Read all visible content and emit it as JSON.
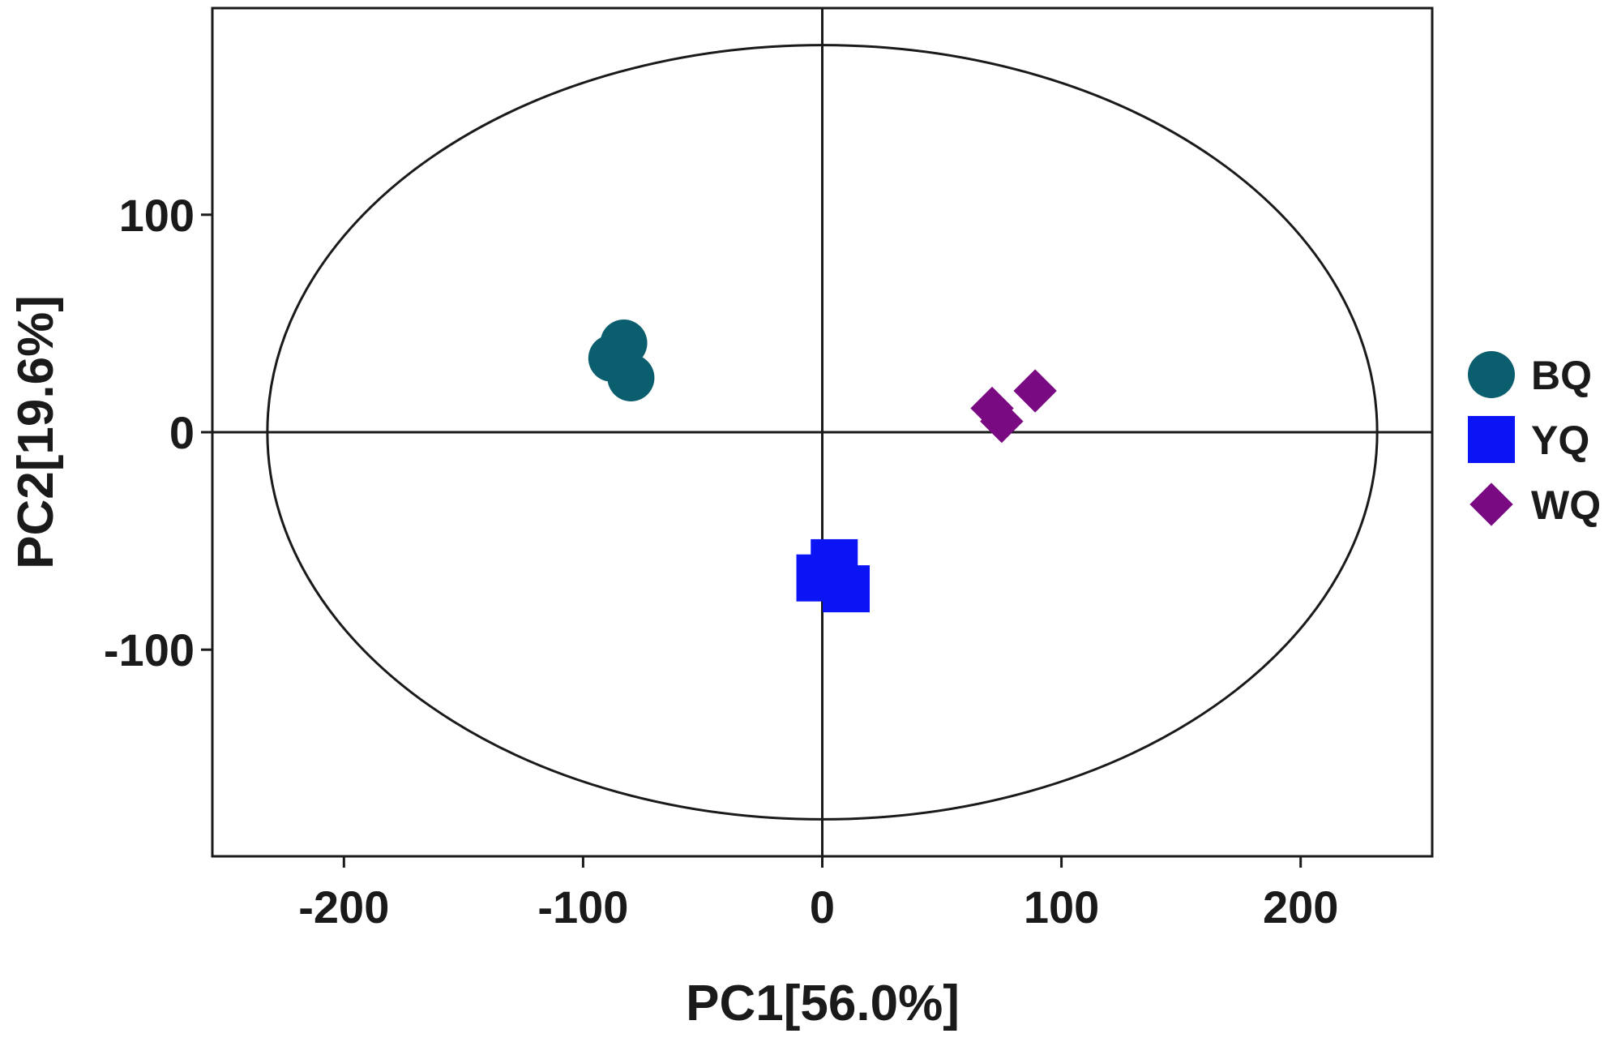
{
  "chart_data": {
    "type": "scatter",
    "xlabel": "PC1[56.0%]",
    "ylabel": "PC2[19.6%]",
    "xlim": [
      -255,
      255
    ],
    "ylim": [
      -195,
      195
    ],
    "xticks": [
      -200,
      -100,
      0,
      100,
      200
    ],
    "yticks": [
      -100,
      0,
      100
    ],
    "grid": false,
    "legend_position": "right",
    "reference_lines": {
      "x": 0,
      "y": 0
    },
    "confidence_ellipse": {
      "cx": 0,
      "cy": 0,
      "rx": 232,
      "ry": 178
    },
    "series": [
      {
        "name": "BQ",
        "marker": "circle",
        "color": "#0b5e6e",
        "points": [
          [
            -88,
            34
          ],
          [
            -83,
            41
          ],
          [
            -80,
            25
          ]
        ]
      },
      {
        "name": "YQ",
        "marker": "square",
        "color": "#0a14f5",
        "points": [
          [
            -1,
            -67
          ],
          [
            5,
            -60
          ],
          [
            10,
            -72
          ]
        ]
      },
      {
        "name": "WQ",
        "marker": "diamond",
        "color": "#7a0a82",
        "points": [
          [
            71,
            11
          ],
          [
            75,
            5
          ],
          [
            89,
            19
          ]
        ]
      }
    ]
  }
}
